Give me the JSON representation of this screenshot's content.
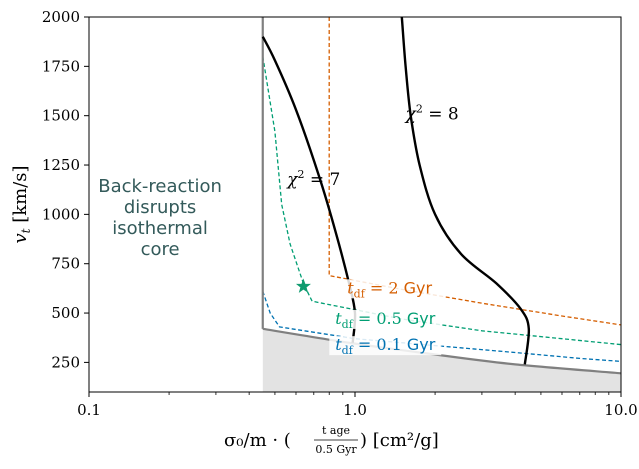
{
  "chart_data": {
    "type": "line",
    "x_scale": "log",
    "xlim": [
      0.1,
      10.0
    ],
    "ylim": [
      100,
      2000
    ],
    "xticks": [
      {
        "value": 0.1,
        "label": "0.1"
      },
      {
        "value": 1.0,
        "label": "1.0"
      },
      {
        "value": 10.0,
        "label": "10.0"
      }
    ],
    "yticks": [
      {
        "value": 250,
        "label": "250"
      },
      {
        "value": 500,
        "label": "500"
      },
      {
        "value": 750,
        "label": "750"
      },
      {
        "value": 1000,
        "label": "1000"
      },
      {
        "value": 1250,
        "label": "1250"
      },
      {
        "value": 1500,
        "label": "1500"
      },
      {
        "value": 1750,
        "label": "1750"
      },
      {
        "value": 2000,
        "label": "2000"
      }
    ],
    "xlabel": {
      "main": "σ₀/m · (",
      "frac_num": "t_age",
      "frac_den": "0.5 Gyr",
      "tail": ") [cm²/g]"
    },
    "ylabel": {
      "var": "v",
      "sub": "t",
      "unit": " [km/s]"
    },
    "annotation_region": [
      "Back-reaction",
      "disrupts",
      "isothermal",
      "core"
    ],
    "region_color": "#335a5a",
    "boundary": {
      "color": "#808080",
      "vertical_x": 0.45,
      "curve": [
        [
          0.45,
          420
        ],
        [
          1.0,
          345
        ],
        [
          2.0,
          290
        ],
        [
          4.0,
          240
        ],
        [
          10.0,
          195
        ]
      ]
    },
    "shaded_color": "#e3e3e3",
    "chi_contours": [
      {
        "label": "χ² = 7",
        "label_pos": [
          0.7,
          1150
        ],
        "color": "#000000",
        "points": [
          [
            0.45,
            1900
          ],
          [
            0.5,
            1780
          ],
          [
            0.6,
            1530
          ],
          [
            0.73,
            1200
          ],
          [
            0.85,
            900
          ],
          [
            0.95,
            650
          ],
          [
            1.0,
            500
          ],
          [
            0.98,
            350
          ]
        ]
      },
      {
        "label": "χ² = 8",
        "label_pos": [
          1.95,
          1480
        ],
        "color": "#000000",
        "points": [
          [
            1.5,
            2000
          ],
          [
            1.55,
            1750
          ],
          [
            1.62,
            1500
          ],
          [
            1.75,
            1250
          ],
          [
            2.0,
            1000
          ],
          [
            2.5,
            800
          ],
          [
            3.4,
            650
          ],
          [
            4.2,
            520
          ],
          [
            4.5,
            420
          ],
          [
            4.35,
            240
          ]
        ]
      }
    ],
    "tdf_lines": [
      {
        "label": "t_df = 2 Gyr",
        "value_text": "2",
        "color": "#d55e00",
        "label_pos": [
          1.35,
          600
        ],
        "points": [
          [
            0.8,
            2000
          ],
          [
            0.8,
            690
          ],
          [
            1.5,
            620
          ],
          [
            3.0,
            550
          ],
          [
            6.0,
            485
          ],
          [
            10.0,
            440
          ]
        ]
      },
      {
        "label": "t_df = 0.5 Gyr",
        "value_text": "0.5",
        "color": "#009e73",
        "label_pos": [
          1.3,
          445
        ],
        "points": [
          [
            0.45,
            1800
          ],
          [
            0.5,
            1420
          ],
          [
            0.53,
            1050
          ],
          [
            0.57,
            850
          ],
          [
            0.64,
            650
          ],
          [
            0.69,
            560
          ],
          [
            1.5,
            470
          ],
          [
            3.0,
            410
          ],
          [
            6.0,
            370
          ],
          [
            10.0,
            340
          ]
        ]
      },
      {
        "label": "t_df = 0.1 Gyr",
        "value_text": "0.1",
        "color": "#0072b2",
        "label_pos": [
          1.3,
          312
        ],
        "points": [
          [
            0.45,
            610
          ],
          [
            0.48,
            500
          ],
          [
            0.52,
            430
          ],
          [
            1.0,
            370
          ],
          [
            2.0,
            335
          ],
          [
            4.0,
            300
          ],
          [
            7.0,
            270
          ],
          [
            10.0,
            255
          ]
        ]
      }
    ],
    "star": {
      "x": 0.64,
      "y": 635,
      "color": "#0e9a6e"
    },
    "tdf_prefix": "t",
    "tdf_sub": "df",
    "tdf_unit": "Gyr"
  }
}
